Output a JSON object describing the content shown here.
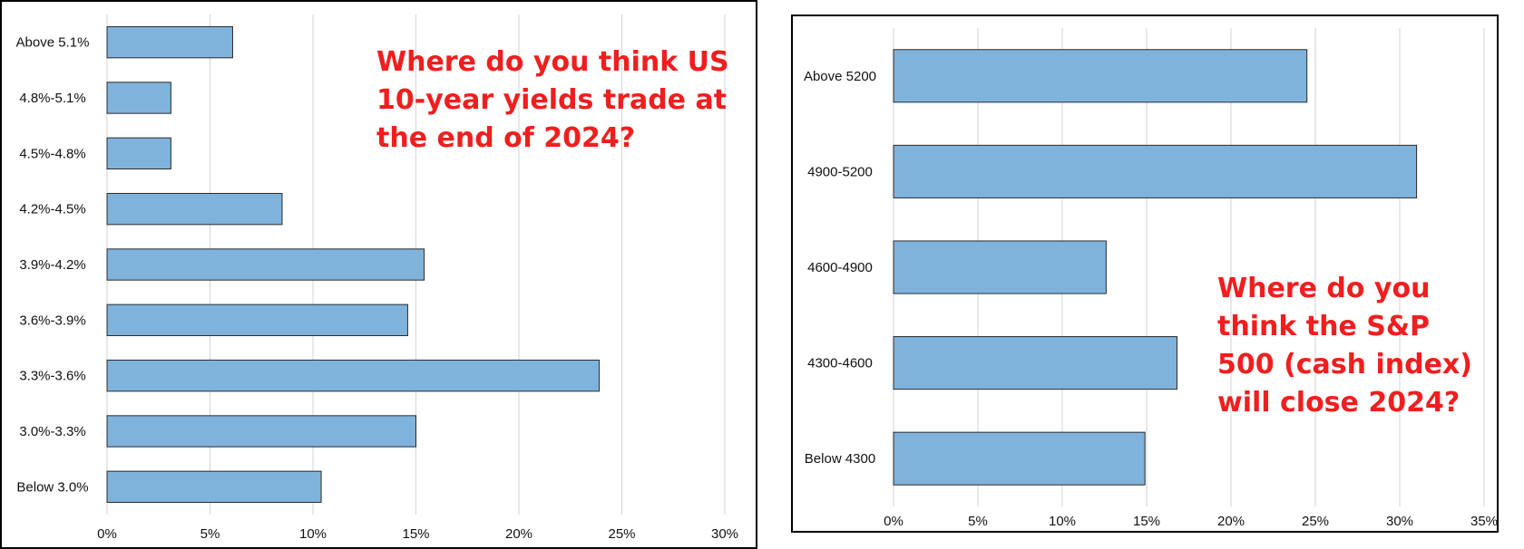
{
  "chart_data": [
    {
      "type": "bar",
      "orientation": "horizontal",
      "title": "Where do you think US 10-year yields trade at the end of 2024?",
      "categories": [
        "Above 5.1%",
        "4.8%-5.1%",
        "4.5%-4.8%",
        "4.2%-4.5%",
        "3.9%-4.2%",
        "3.6%-3.9%",
        "3.3%-3.6%",
        "3.0%-3.3%",
        "Below 3.0%"
      ],
      "values": [
        6.1,
        3.1,
        3.1,
        8.5,
        15.4,
        14.6,
        23.9,
        15.0,
        10.4
      ],
      "xticks": [
        "0%",
        "5%",
        "10%",
        "15%",
        "20%",
        "25%",
        "30%"
      ],
      "xlim": [
        0,
        30
      ],
      "xlabel": "",
      "ylabel": "",
      "grid": "vertical",
      "bar_color": "#7fb3dc"
    },
    {
      "type": "bar",
      "orientation": "horizontal",
      "title": "Where do you think the S&P 500 (cash index) will close 2024?",
      "categories": [
        "Above 5200",
        "4900-5200",
        "4600-4900",
        "4300-4600",
        "Below 4300"
      ],
      "values": [
        24.5,
        31.0,
        12.6,
        16.8,
        14.9
      ],
      "xticks": [
        "0%",
        "5%",
        "10%",
        "15%",
        "20%",
        "25%",
        "30%",
        "35%"
      ],
      "xlim": [
        0,
        35
      ],
      "xlabel": "",
      "ylabel": "",
      "grid": "vertical",
      "bar_color": "#7fb3dc"
    }
  ],
  "title_color": "#f01e1e"
}
